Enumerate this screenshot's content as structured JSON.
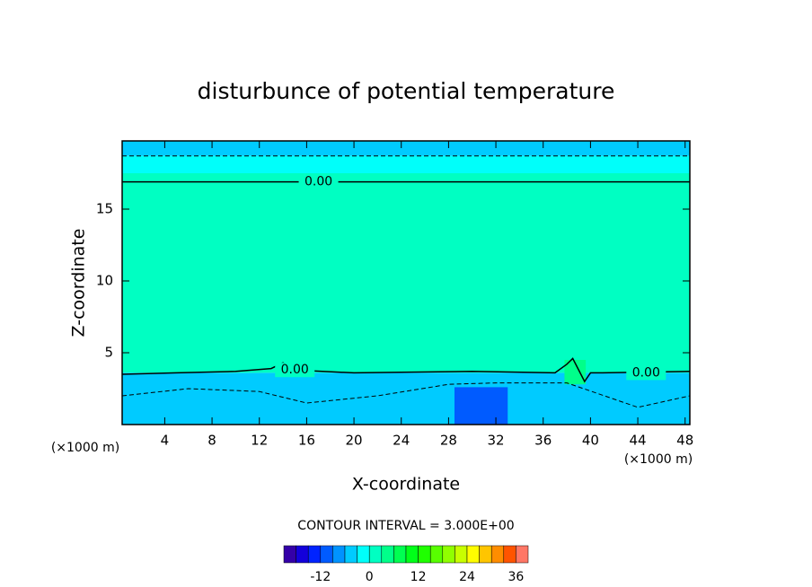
{
  "chart_data": {
    "type": "contour",
    "title": "disturbunce of potential temperature",
    "xlabel": "X-coordinate",
    "ylabel": "Z-coordinate",
    "x_unit_labels": [
      "(×1000 m)",
      "(×1000 m)"
    ],
    "interval_text": "CONTOUR INTERVAL = 3.000E+00",
    "xlim": [
      0.4,
      48.4
    ],
    "xticks": [
      4,
      8,
      12,
      16,
      20,
      24,
      28,
      32,
      36,
      40,
      44,
      48
    ],
    "ylim": [
      0,
      19.75
    ],
    "yticks": [
      5,
      10,
      15
    ],
    "layers": [
      {
        "x": [
          0.4,
          48.4
        ],
        "z": [
          18.7,
          19.75
        ],
        "value": -4.5
      },
      {
        "x": [
          0.4,
          48.4
        ],
        "z": [
          17.5,
          18.7
        ],
        "value": -1.5
      },
      {
        "x": [
          0.4,
          48.4
        ],
        "z": [
          3.6,
          17.5
        ],
        "value": 1.5
      },
      {
        "x": [
          0.4,
          48.4
        ],
        "z": [
          0,
          3.6
        ],
        "value": -4.5
      },
      {
        "x": [
          28.5,
          33
        ],
        "z": [
          0,
          2.6
        ],
        "value": -10.5
      },
      {
        "x": [
          37.8,
          39.6
        ],
        "z": [
          2.8,
          4.5
        ],
        "value": 4.5
      }
    ],
    "contours": [
      {
        "level": 0,
        "style": "solid",
        "x": [
          0.4,
          48.4
        ],
        "z": [
          16.9,
          16.9
        ]
      },
      {
        "level": -3,
        "style": "dashed",
        "x": [
          0.4,
          48.4
        ],
        "z": [
          18.7,
          18.7
        ]
      },
      {
        "level": 0,
        "style": "solid",
        "x": [
          0.4,
          5,
          10,
          13,
          14,
          15,
          20,
          30,
          37,
          38,
          38.5,
          39.5,
          40,
          41,
          48.4
        ],
        "z": [
          3.5,
          3.6,
          3.7,
          3.9,
          4.3,
          3.8,
          3.6,
          3.7,
          3.6,
          4.2,
          4.6,
          3.0,
          3.6,
          3.6,
          3.7
        ]
      },
      {
        "level": -3,
        "style": "dashed",
        "x": [
          0.4,
          6,
          12,
          16,
          22,
          28,
          32,
          38,
          44,
          48.4
        ],
        "z": [
          2.0,
          2.5,
          2.3,
          1.5,
          2.0,
          2.8,
          2.9,
          2.9,
          1.2,
          2.0
        ]
      }
    ],
    "contour_labels": [
      {
        "text": "0.00",
        "x": 17,
        "z": 16.9
      },
      {
        "text": "0.00",
        "x": 15,
        "z": 3.8
      },
      {
        "text": "0.00",
        "x": 44.7,
        "z": 3.6
      }
    ],
    "colorbar": {
      "lim": [
        -21,
        39
      ],
      "interval": 3,
      "ticks": [
        -12,
        0,
        12,
        24,
        36
      ]
    }
  }
}
